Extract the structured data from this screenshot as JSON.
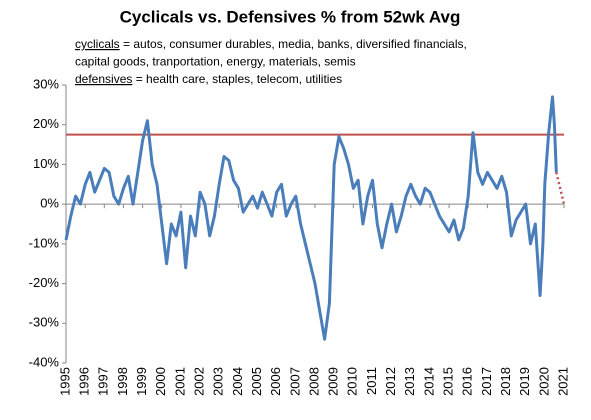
{
  "chart_data": {
    "type": "line",
    "title": "Cyclicals vs. Defensives % from 52wk Avg",
    "annotations": [
      {
        "term": "cyclicals",
        "text": " = autos, consumer durables, media, banks, diversified financials,"
      },
      {
        "term": null,
        "text": "capital goods, tranportation, energy, materials, semis"
      },
      {
        "term": "defensives",
        "text": " = health care, staples, telecom, utilities"
      }
    ],
    "xlim": [
      1995,
      2021
    ],
    "xticks": [
      1995,
      1996,
      1997,
      1998,
      1999,
      2000,
      2001,
      2002,
      2003,
      2004,
      2005,
      2006,
      2007,
      2008,
      2009,
      2010,
      2011,
      2012,
      2013,
      2014,
      2015,
      2016,
      2017,
      2018,
      2019,
      2020,
      2021
    ],
    "ylim": [
      -40,
      30
    ],
    "yticks": [
      {
        "value": -40,
        "label": "-40%"
      },
      {
        "value": -30,
        "label": "-30%"
      },
      {
        "value": -20,
        "label": "-20%"
      },
      {
        "value": -10,
        "label": "-10%"
      },
      {
        "value": 0,
        "label": "0%"
      },
      {
        "value": 10,
        "label": "10%"
      },
      {
        "value": 20,
        "label": "20%"
      },
      {
        "value": 30,
        "label": "30%"
      }
    ],
    "hline": {
      "value": 17.5,
      "color": "#c0504d"
    },
    "series": [
      {
        "color": "#4a7ebb",
        "style": "solid",
        "x": [
          1995,
          1995.25,
          1995.5,
          1995.75,
          1996,
          1996.25,
          1996.5,
          1996.75,
          1997,
          1997.25,
          1997.5,
          1997.75,
          1998,
          1998.25,
          1998.5,
          1998.75,
          1999,
          1999.25,
          1999.5,
          1999.75,
          2000,
          2000.25,
          2000.5,
          2000.75,
          2001,
          2001.25,
          2001.5,
          2001.75,
          2002,
          2002.25,
          2002.5,
          2002.75,
          2003,
          2003.25,
          2003.5,
          2003.75,
          2004,
          2004.25,
          2004.5,
          2004.75,
          2005,
          2005.25,
          2005.5,
          2005.75,
          2006,
          2006.25,
          2006.5,
          2006.75,
          2007,
          2007.25,
          2007.5,
          2007.75,
          2008,
          2008.25,
          2008.5,
          2008.75,
          2009,
          2009.25,
          2009.5,
          2009.75,
          2010,
          2010.25,
          2010.5,
          2010.75,
          2011,
          2011.25,
          2011.5,
          2011.75,
          2012,
          2012.25,
          2012.5,
          2012.75,
          2013,
          2013.25,
          2013.5,
          2013.75,
          2014,
          2014.25,
          2014.5,
          2014.75,
          2015,
          2015.25,
          2015.5,
          2015.75,
          2016,
          2016.25,
          2016.5,
          2016.75,
          2017,
          2017.25,
          2017.5,
          2017.75,
          2018,
          2018.25,
          2018.5,
          2018.75,
          2019,
          2019.25,
          2019.5,
          2019.75,
          2019.9,
          2020,
          2020.2,
          2020.4,
          2020.5,
          2020.6
        ],
        "values": [
          -9,
          -3,
          2,
          0,
          5,
          8,
          3,
          6,
          9,
          8,
          2,
          0,
          4,
          7,
          0,
          8,
          16,
          21,
          10,
          5,
          -5,
          -15,
          -5,
          -8,
          -2,
          -16,
          -3,
          -8,
          3,
          0,
          -8,
          -3,
          5,
          12,
          11,
          6,
          4,
          -2,
          0,
          2,
          -1,
          3,
          0,
          -3,
          3,
          5,
          -3,
          0,
          2,
          -5,
          -10,
          -15,
          -20,
          -27,
          -34,
          -25,
          10,
          17,
          14,
          10,
          4,
          6,
          -5,
          2,
          6,
          -5,
          -11,
          -5,
          0,
          -7,
          -3,
          2,
          5,
          2,
          0,
          4,
          3,
          0,
          -3,
          -5,
          -7,
          -4,
          -9,
          -6,
          2,
          18,
          8,
          5,
          8,
          6,
          4,
          7,
          3,
          -8,
          -4,
          -2,
          0,
          -10,
          -5,
          -23,
          -10,
          5,
          18,
          27,
          20,
          8
        ]
      },
      {
        "color": "#c0504d",
        "style": "dotted",
        "x": [
          2020.6,
          2021
        ],
        "values": [
          8,
          0
        ]
      }
    ]
  }
}
